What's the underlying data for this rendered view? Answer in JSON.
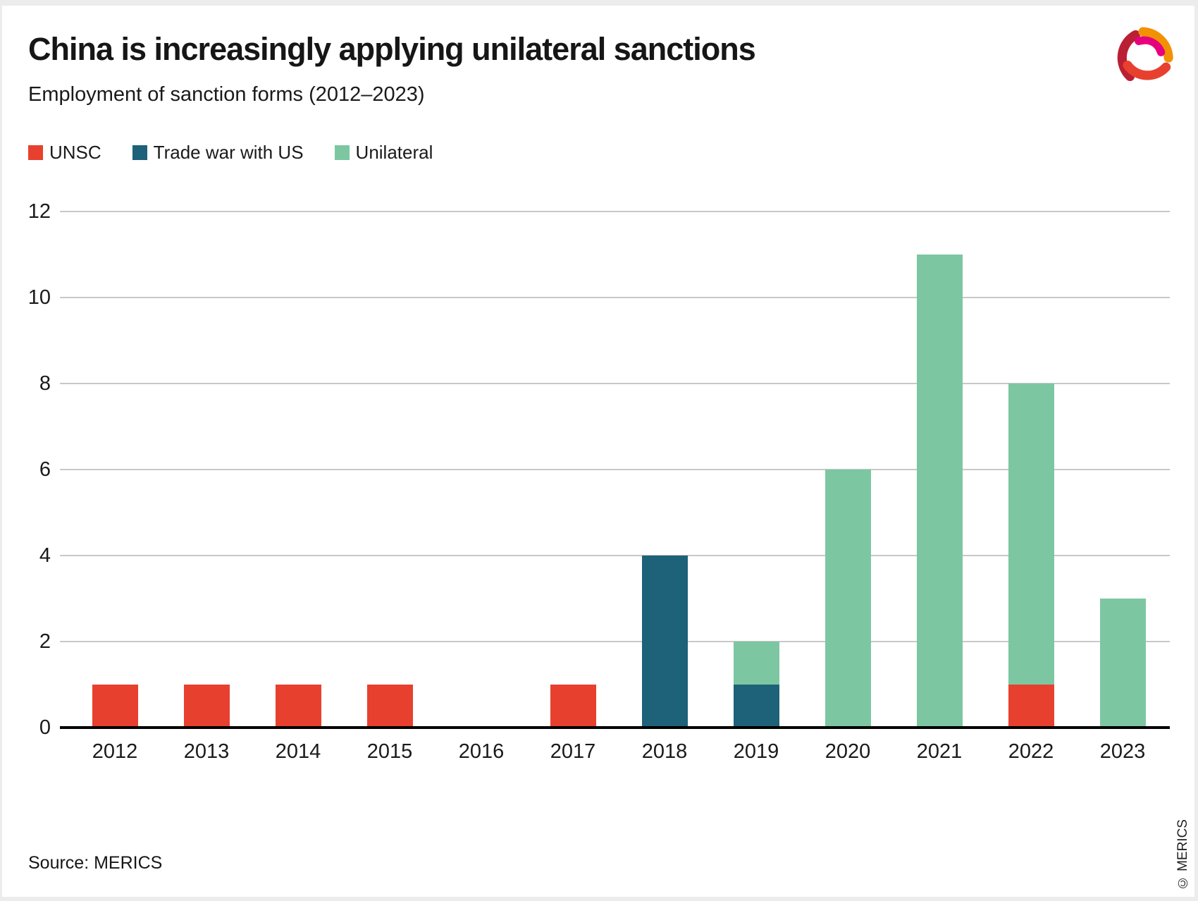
{
  "header": {
    "title": "China is increasingly applying unilateral sanctions",
    "subtitle": "Employment of sanction forms (2012–2023)"
  },
  "footer": {
    "source": "Source: MERICS",
    "copyright": "© MERICS"
  },
  "icons": {
    "logo": "merics-logo"
  },
  "colors": {
    "unsc": "#e8402f",
    "trade_war": "#1d6278",
    "unilateral": "#7cc7a2",
    "grid": "#c8c8c8",
    "axis": "#000000",
    "logo_dark_red": "#bb1f33",
    "logo_orange": "#f29104",
    "logo_magenta": "#e6007e",
    "logo_bright_red": "#e8402f"
  },
  "chart_data": {
    "type": "bar",
    "subtype": "stacked-vertical",
    "categories": [
      "2012",
      "2013",
      "2014",
      "2015",
      "2016",
      "2017",
      "2018",
      "2019",
      "2020",
      "2021",
      "2022",
      "2023"
    ],
    "series": [
      {
        "name": "UNSC",
        "color_key": "unsc",
        "values": [
          1,
          1,
          1,
          1,
          0,
          1,
          0,
          0,
          0,
          0,
          1,
          0
        ]
      },
      {
        "name": "Trade war with US",
        "color_key": "trade_war",
        "values": [
          0,
          0,
          0,
          0,
          0,
          0,
          4,
          1,
          0,
          0,
          0,
          0
        ]
      },
      {
        "name": "Unilateral",
        "color_key": "unilateral",
        "values": [
          0,
          0,
          0,
          0,
          0,
          0,
          0,
          1,
          6,
          11,
          7,
          3
        ]
      }
    ],
    "totals": [
      1,
      1,
      1,
      1,
      0,
      1,
      4,
      2,
      6,
      11,
      8,
      3
    ],
    "ylim": [
      0,
      12
    ],
    "yticks": [
      0,
      2,
      4,
      6,
      8,
      10,
      12
    ],
    "xlabel": "",
    "ylabel": "",
    "grid": "horizontal",
    "legend_position": "top-left"
  }
}
